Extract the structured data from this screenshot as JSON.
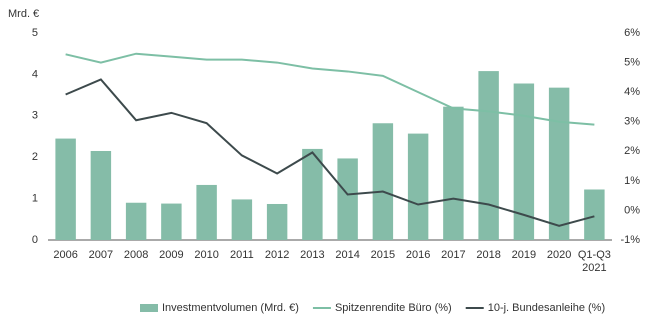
{
  "chart_data": {
    "type": "bar-line",
    "y_axis_label": "Mrd. €",
    "categories": [
      "2006",
      "2007",
      "2008",
      "2009",
      "2010",
      "2011",
      "2012",
      "2013",
      "2014",
      "2015",
      "2016",
      "2017",
      "2018",
      "2019",
      "2020",
      "Q1-Q3 2021"
    ],
    "series": [
      {
        "name": "Investmentvolumen (Mrd. €)",
        "type": "bar",
        "color": "#85bca8",
        "values": [
          2.45,
          2.15,
          0.9,
          0.88,
          1.33,
          0.98,
          0.87,
          2.2,
          1.97,
          2.82,
          2.57,
          3.22,
          4.08,
          3.78,
          3.68,
          1.22
        ]
      },
      {
        "name": "Spitzenrendite Büro (%)",
        "type": "line",
        "axis": "y2",
        "color": "#7dbfa5",
        "values": [
          5.28,
          5.0,
          5.3,
          5.2,
          5.1,
          5.1,
          5.0,
          4.8,
          4.7,
          4.55,
          4.0,
          3.45,
          3.35,
          3.2,
          3.0,
          2.9
        ]
      },
      {
        "name": "10-j. Bundesanleihe (%)",
        "type": "line",
        "axis": "y2",
        "color": "#3d4a4c",
        "values": [
          3.92,
          4.43,
          3.05,
          3.3,
          2.95,
          1.86,
          1.25,
          1.96,
          0.54,
          0.64,
          0.2,
          0.4,
          0.2,
          -0.15,
          -0.52,
          -0.2
        ]
      }
    ],
    "ylim": [
      0,
      5
    ],
    "yticks": [
      0,
      1,
      2,
      3,
      4,
      5
    ],
    "y2lim": [
      -1,
      6
    ],
    "y2ticks": [
      {
        "value": -1,
        "label": "-1%"
      },
      {
        "value": 0,
        "label": "0%"
      },
      {
        "value": 1,
        "label": "1%"
      },
      {
        "value": 2,
        "label": "2%"
      },
      {
        "value": 3,
        "label": "3%"
      },
      {
        "value": 4,
        "label": "4%"
      },
      {
        "value": 5,
        "label": "5%"
      },
      {
        "value": 6,
        "label": "6%"
      }
    ],
    "legend": "bottom"
  }
}
